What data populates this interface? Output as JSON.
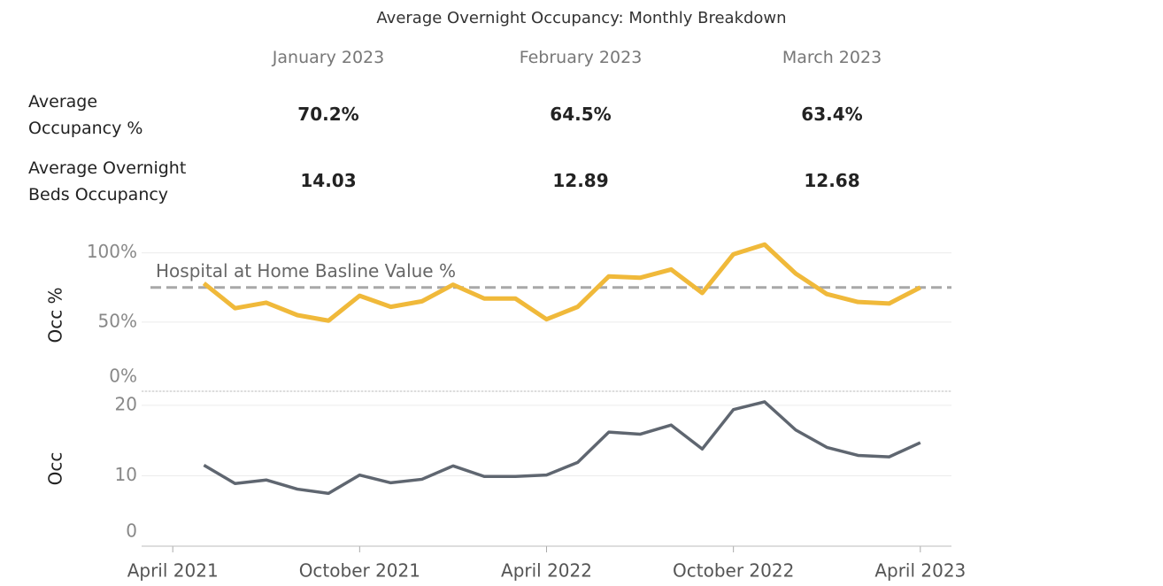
{
  "table": {
    "title": "Average Overnight Occupancy: Monthly Breakdown",
    "columns": [
      "January 2023",
      "February 2023",
      "March 2023"
    ],
    "rows": [
      {
        "label": "Average Occupancy %",
        "values": [
          "70.2%",
          "64.5%",
          "63.4%"
        ]
      },
      {
        "label": "Average Overnight Beds Occupancy",
        "values": [
          "14.03",
          "12.89",
          "12.68"
        ]
      }
    ]
  },
  "chart_data": [
    {
      "type": "line",
      "y_label": "Occ %",
      "color": "#f0b93a",
      "x": [
        "2021-05",
        "2021-06",
        "2021-07",
        "2021-08",
        "2021-09",
        "2021-10",
        "2021-11",
        "2021-12",
        "2022-01",
        "2022-02",
        "2022-03",
        "2022-04",
        "2022-05",
        "2022-06",
        "2022-07",
        "2022-08",
        "2022-09",
        "2022-10",
        "2022-11",
        "2022-12",
        "2023-01",
        "2023-02",
        "2023-03",
        "2023-04"
      ],
      "values": [
        78,
        60,
        64,
        55,
        51,
        69,
        61,
        65,
        77,
        67,
        67,
        52,
        61,
        83,
        82,
        88,
        71,
        99,
        106,
        85,
        70.2,
        64.5,
        63.4,
        75
      ],
      "xlim": [
        "2021-03",
        "2023-05"
      ],
      "ylim": [
        0,
        110
      ],
      "yticks": [
        {
          "value": 0,
          "label": "0%"
        },
        {
          "value": 50,
          "label": "50%"
        },
        {
          "value": 100,
          "label": "100%"
        }
      ],
      "reference_line": {
        "value": 75,
        "label": "Hospital at Home Basline Value %"
      },
      "grid": true
    },
    {
      "type": "line",
      "y_label": "Occ",
      "color": "#5f6670",
      "x": [
        "2021-05",
        "2021-06",
        "2021-07",
        "2021-08",
        "2021-09",
        "2021-10",
        "2021-11",
        "2021-12",
        "2022-01",
        "2022-02",
        "2022-03",
        "2022-04",
        "2022-05",
        "2022-06",
        "2022-07",
        "2022-08",
        "2022-09",
        "2022-10",
        "2022-11",
        "2022-12",
        "2023-01",
        "2023-02",
        "2023-03",
        "2023-04"
      ],
      "values": [
        11.5,
        8.9,
        9.4,
        8.1,
        7.5,
        10.1,
        9.0,
        9.5,
        11.4,
        9.9,
        9.9,
        10.1,
        11.9,
        16.2,
        15.9,
        17.2,
        13.8,
        19.4,
        20.5,
        16.5,
        14.03,
        12.89,
        12.68,
        14.7
      ],
      "xlim": [
        "2021-03",
        "2023-05"
      ],
      "xticks": [
        {
          "value": "2021-04",
          "label": "April 2021"
        },
        {
          "value": "2021-10",
          "label": "October 2021"
        },
        {
          "value": "2022-04",
          "label": "April 2022"
        },
        {
          "value": "2022-10",
          "label": "October 2022"
        },
        {
          "value": "2023-04",
          "label": "April 2023"
        }
      ],
      "ylim": [
        0,
        22
      ],
      "yticks": [
        0,
        10,
        20
      ],
      "grid": true
    }
  ]
}
